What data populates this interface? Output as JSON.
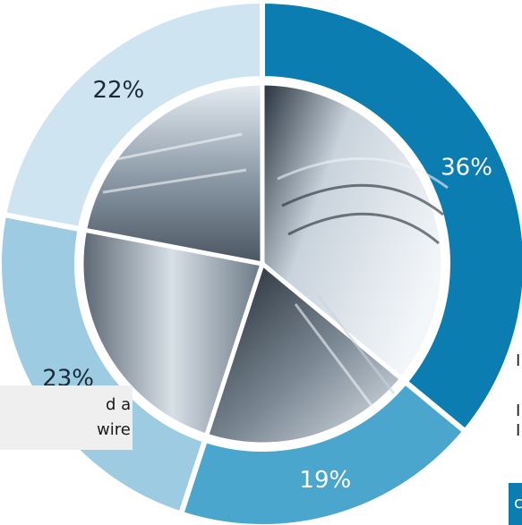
{
  "chart_data": {
    "type": "donut",
    "slices": [
      {
        "label": "36%",
        "value": 36,
        "color": "#0b7db1"
      },
      {
        "label": "19%",
        "value": 19,
        "color": "#4aa6cc"
      },
      {
        "label": "23%",
        "value": 23,
        "color": "#9ccbe2"
      },
      {
        "label": "22%",
        "value": 22,
        "color": "#cfe4f1"
      }
    ],
    "title": "",
    "xlabel": "",
    "ylabel": "",
    "legend": "none",
    "images_in_center": true
  },
  "caption": {
    "line1": "d a",
    "line2": "wire"
  },
  "right_fragments": {
    "line1": "I",
    "line2": "I",
    "line3": "I",
    "badge": "c"
  }
}
